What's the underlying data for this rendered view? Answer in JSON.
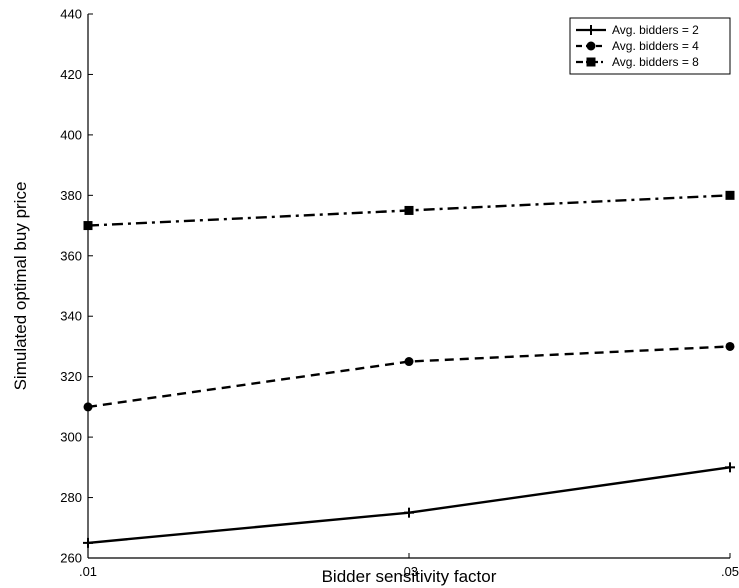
{
  "chart_data": {
    "type": "line",
    "title": "",
    "xlabel": "Bidder sensitivity factor",
    "ylabel": "Simulated optimal buy price",
    "x": [
      ".01",
      ".03",
      ".05"
    ],
    "x_values": [
      0.01,
      0.03,
      0.05
    ],
    "xlim": [
      0.01,
      0.05
    ],
    "ylim": [
      260,
      440
    ],
    "yticks": [
      260,
      280,
      300,
      320,
      340,
      360,
      380,
      400,
      420,
      440
    ],
    "grid": false,
    "legend_position": "top-right",
    "series": [
      {
        "name": "Avg. bidders = 2",
        "values": [
          265,
          275,
          290
        ],
        "line_style": "solid",
        "marker": "plus",
        "color": "#000000"
      },
      {
        "name": "Avg. bidders = 4",
        "values": [
          310,
          325,
          330
        ],
        "line_style": "dashed",
        "marker": "circle",
        "color": "#000000"
      },
      {
        "name": "Avg. bidders = 8",
        "values": [
          370,
          375,
          380
        ],
        "line_style": "dash-dot",
        "marker": "square",
        "color": "#000000"
      }
    ]
  }
}
